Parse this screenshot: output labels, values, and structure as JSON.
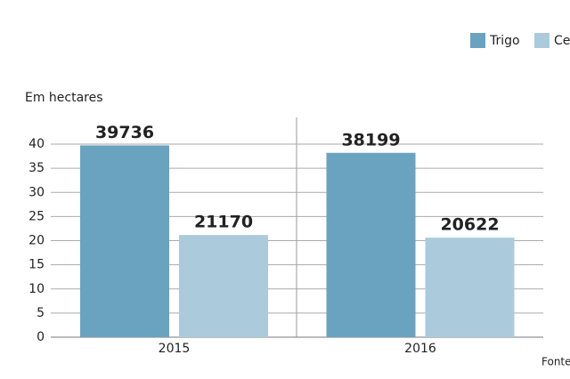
{
  "chart_data": {
    "type": "bar",
    "subtitle": "Em hectares",
    "source": "Fonte",
    "categories": [
      "2015",
      "2016"
    ],
    "series": [
      {
        "name": "Trigo",
        "color": "#6aa3bf",
        "values": [
          39.736,
          38.199
        ],
        "value_labels": [
          "39736",
          "38199"
        ]
      },
      {
        "name": "Cev",
        "color": "#abcbdc",
        "values": [
          21.17,
          20.622
        ],
        "value_labels": [
          "21170",
          "20622"
        ]
      }
    ],
    "ylim": [
      0,
      40
    ],
    "yticks": [
      0,
      5,
      10,
      15,
      20,
      25,
      30,
      35,
      40
    ],
    "grid": true
  }
}
